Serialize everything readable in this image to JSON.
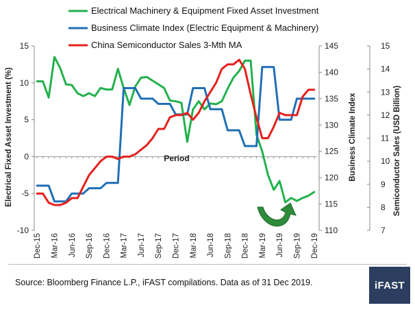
{
  "chart_data": {
    "type": "line",
    "title": "",
    "xlabel": "Period",
    "ylabel_left": "Electrical Fixed Asset Investment (%)",
    "ylabel_right1": "Business Climate Index",
    "ylabel_right2": "Semiconductor Sales (USD Billion)",
    "ylim_left": [
      -10,
      15
    ],
    "ylim_right1": [
      110,
      145
    ],
    "ylim_right2": [
      7,
      15
    ],
    "left_ticks": [
      "-10",
      "-5",
      "0",
      "5",
      "10",
      "15"
    ],
    "right1_ticks": [
      "110",
      "115",
      "120",
      "125",
      "130",
      "135",
      "140",
      "145"
    ],
    "right2_ticks": [
      "7",
      "8",
      "9",
      "10",
      "11",
      "12",
      "13",
      "14",
      "15"
    ],
    "x_tick_labels": [
      "Dec-15",
      "Mar-16",
      "Jun-16",
      "Sep-16",
      "Dec-16",
      "Mar-17",
      "Jun-17",
      "Sep-17",
      "Dec-17",
      "Mar-18",
      "Jun-18",
      "Sep-18",
      "Dec-18",
      "Mar-19",
      "Jun-19",
      "Sep-19",
      "Dec-19"
    ],
    "x": [
      "Dec-15",
      "Jan-16",
      "Feb-16",
      "Mar-16",
      "Apr-16",
      "May-16",
      "Jun-16",
      "Jul-16",
      "Aug-16",
      "Sep-16",
      "Oct-16",
      "Nov-16",
      "Dec-16",
      "Jan-17",
      "Feb-17",
      "Mar-17",
      "Apr-17",
      "May-17",
      "Jun-17",
      "Jul-17",
      "Aug-17",
      "Sep-17",
      "Oct-17",
      "Nov-17",
      "Dec-17",
      "Jan-18",
      "Feb-18",
      "Mar-18",
      "Apr-18",
      "May-18",
      "Jun-18",
      "Jul-18",
      "Aug-18",
      "Sep-18",
      "Oct-18",
      "Nov-18",
      "Dec-18",
      "Jan-19",
      "Feb-19",
      "Mar-19",
      "Apr-19",
      "May-19",
      "Jun-19",
      "Jul-19",
      "Aug-19",
      "Sep-19",
      "Oct-19",
      "Nov-19",
      "Dec-19"
    ],
    "series": [
      {
        "name": "Electrical Machinery & Equipment Fixed Asset Investment",
        "axis": "left",
        "color": "#22b14c",
        "values": [
          10.2,
          10.2,
          8.0,
          13.5,
          12.0,
          9.8,
          9.7,
          8.6,
          8.2,
          8.6,
          8.2,
          9.3,
          9.1,
          9.1,
          11.9,
          9.3,
          7.0,
          9.5,
          10.7,
          10.8,
          10.3,
          9.8,
          9.3,
          7.6,
          7.5,
          7.3,
          2.0,
          6.4,
          7.5,
          6.4,
          7.2,
          7.1,
          7.5,
          9.2,
          10.7,
          11.6,
          13.0,
          13.0,
          3.0,
          0.7,
          -2.5,
          -4.5,
          -3.3,
          -6.2,
          -5.6,
          -6.0,
          -5.6,
          -5.3,
          -4.8
        ]
      },
      {
        "name": "Business Climate Index (Electric Equipment & Machinery)",
        "axis": "right1",
        "color": "#1f6fb5",
        "values": [
          118.5,
          118.5,
          118.5,
          115.5,
          115.5,
          115.5,
          117.0,
          117.0,
          117.0,
          118.0,
          118.0,
          118.0,
          119.0,
          119.0,
          119.0,
          137.0,
          137.0,
          137.0,
          135.0,
          135.0,
          135.0,
          134.0,
          134.0,
          134.0,
          132.0,
          132.0,
          132.0,
          137.0,
          137.0,
          137.0,
          133.0,
          133.0,
          133.0,
          129.0,
          129.0,
          129.0,
          126.0,
          126.0,
          126.0,
          141.0,
          141.0,
          141.0,
          131.0,
          131.0,
          131.0,
          135.0,
          135.0,
          135.0,
          135.0
        ]
      },
      {
        "name": "China Semiconductor Sales 3-Mth MA",
        "axis": "right2",
        "color": "#e5201c",
        "values": [
          8.6,
          8.6,
          8.2,
          8.1,
          8.1,
          8.2,
          8.4,
          8.4,
          8.9,
          9.4,
          9.7,
          10.0,
          10.2,
          10.2,
          10.1,
          10.2,
          10.2,
          10.3,
          10.5,
          10.7,
          11.0,
          11.4,
          11.4,
          11.9,
          12.0,
          12.0,
          12.1,
          11.8,
          12.1,
          12.6,
          13.0,
          13.4,
          14.0,
          14.2,
          14.2,
          14.4,
          14.0,
          12.9,
          11.9,
          11.0,
          11.0,
          11.5,
          12.1,
          12.0,
          12.0,
          12.0,
          12.8,
          13.1,
          13.1
        ]
      }
    ],
    "legend_position": "top-left",
    "grid": false,
    "annotation": "green U-shaped arrow indicating trough and rebound"
  },
  "footer": {
    "source_text": "Source: Bloomberg Finance L.P., iFAST compilations. Data as of 31 Dec 2019.",
    "logo_text": "iFAST",
    "logo_color": "#2c3e5f"
  }
}
